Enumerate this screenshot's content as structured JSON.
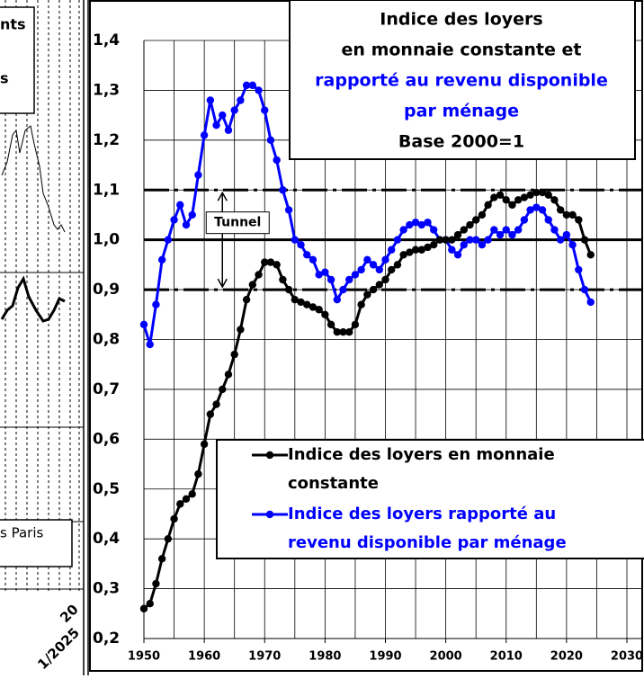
{
  "chart_data": {
    "type": "line",
    "title": [
      {
        "text": "Indice des loyers",
        "color": "#000000"
      },
      {
        "text": "en monnaie constante et",
        "color": "#000000"
      },
      {
        "text": "rapporté au revenu disponible",
        "color": "#0000ff"
      },
      {
        "text": "par ménage",
        "color": "#0000ff"
      },
      {
        "text": "Base 2000=1",
        "color": "#000000"
      }
    ],
    "x": [
      1950,
      1951,
      1952,
      1953,
      1954,
      1955,
      1956,
      1957,
      1958,
      1959,
      1960,
      1961,
      1962,
      1963,
      1964,
      1965,
      1966,
      1967,
      1968,
      1969,
      1970,
      1971,
      1972,
      1973,
      1974,
      1975,
      1976,
      1977,
      1978,
      1979,
      1980,
      1981,
      1982,
      1983,
      1984,
      1985,
      1986,
      1987,
      1988,
      1989,
      1990,
      1991,
      1992,
      1993,
      1994,
      1995,
      1996,
      1997,
      1998,
      1999,
      2000,
      2001,
      2002,
      2003,
      2004,
      2005,
      2006,
      2007,
      2008,
      2009,
      2010,
      2011,
      2012,
      2013,
      2014,
      2015,
      2016,
      2017,
      2018,
      2019,
      2020,
      2021,
      2022,
      2023,
      2024
    ],
    "series": [
      {
        "name": "Indice des loyers en monnaie constante",
        "color": "#000000",
        "values": [
          0.26,
          0.27,
          0.31,
          0.36,
          0.4,
          0.44,
          0.47,
          0.48,
          0.49,
          0.53,
          0.59,
          0.65,
          0.67,
          0.7,
          0.73,
          0.77,
          0.82,
          0.88,
          0.91,
          0.93,
          0.955,
          0.955,
          0.95,
          0.92,
          0.9,
          0.88,
          0.875,
          0.87,
          0.865,
          0.86,
          0.85,
          0.83,
          0.815,
          0.815,
          0.815,
          0.83,
          0.87,
          0.89,
          0.9,
          0.91,
          0.92,
          0.94,
          0.95,
          0.97,
          0.975,
          0.98,
          0.98,
          0.985,
          0.99,
          1.0,
          1.0,
          1.0,
          1.01,
          1.02,
          1.03,
          1.04,
          1.05,
          1.07,
          1.085,
          1.09,
          1.08,
          1.07,
          1.08,
          1.085,
          1.09,
          1.095,
          1.095,
          1.09,
          1.08,
          1.06,
          1.05,
          1.05,
          1.04,
          1.0,
          0.97
        ]
      },
      {
        "name": "Indice des loyers rapporté au revenu disponible par ménage",
        "color": "#0000ff",
        "values": [
          0.83,
          0.79,
          0.87,
          0.96,
          1.0,
          1.04,
          1.07,
          1.03,
          1.05,
          1.13,
          1.21,
          1.28,
          1.23,
          1.25,
          1.22,
          1.26,
          1.28,
          1.31,
          1.31,
          1.3,
          1.26,
          1.2,
          1.16,
          1.1,
          1.06,
          1.0,
          0.99,
          0.97,
          0.96,
          0.93,
          0.935,
          0.92,
          0.88,
          0.9,
          0.92,
          0.93,
          0.94,
          0.96,
          0.95,
          0.94,
          0.96,
          0.98,
          1.0,
          1.02,
          1.03,
          1.035,
          1.03,
          1.035,
          1.02,
          1.0,
          1.0,
          0.98,
          0.97,
          0.99,
          1.0,
          1.0,
          0.99,
          1.0,
          1.02,
          1.01,
          1.02,
          1.01,
          1.02,
          1.04,
          1.06,
          1.065,
          1.06,
          1.04,
          1.02,
          1.0,
          1.01,
          0.99,
          0.94,
          0.9,
          0.875
        ]
      }
    ],
    "xlim": [
      1950,
      2030
    ],
    "xticks": [
      1950,
      1960,
      1970,
      1980,
      1990,
      2000,
      2010,
      2020,
      2030
    ],
    "xgrid_step": 5,
    "ylim": [
      0.2,
      1.4
    ],
    "yticks": [
      {
        "value": 0.2,
        "label": "0,2"
      },
      {
        "value": 0.3,
        "label": "0,3"
      },
      {
        "value": 0.4,
        "label": "0,4"
      },
      {
        "value": 0.5,
        "label": "0,5"
      },
      {
        "value": 0.6,
        "label": "0,6"
      },
      {
        "value": 0.7,
        "label": "0,7"
      },
      {
        "value": 0.8,
        "label": "0,8"
      },
      {
        "value": 0.9,
        "label": "0,9"
      },
      {
        "value": 1.0,
        "label": "1,0"
      },
      {
        "value": 1.1,
        "label": "1,1"
      },
      {
        "value": 1.2,
        "label": "1,2"
      },
      {
        "value": 1.3,
        "label": "1,3"
      },
      {
        "value": 1.4,
        "label": "1,4"
      }
    ],
    "grid": true,
    "hlines": [
      {
        "value": 1.1,
        "style": "dashdot"
      },
      {
        "value": 1.0,
        "style": "solid"
      },
      {
        "value": 0.9,
        "style": "dashdot"
      }
    ],
    "annotation": {
      "text": "Tunnel",
      "x": 1963,
      "from": 1.1,
      "to": 0.9
    },
    "legend": "bottom-right"
  },
  "left_fragment": {
    "texts": [
      "nts",
      "s",
      "s Paris"
    ],
    "x_labels": [
      "20",
      "1/2025"
    ]
  }
}
